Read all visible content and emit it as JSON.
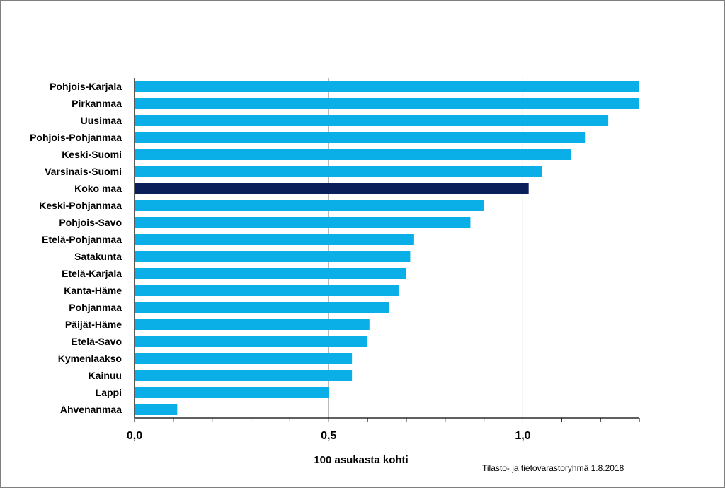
{
  "chart_data": {
    "type": "bar",
    "orientation": "horizontal",
    "title": "",
    "xlabel": "100 asukasta kohti",
    "ylabel": "",
    "xlim": [
      0,
      1.3
    ],
    "x_ticks": [
      {
        "value": 0.0,
        "label": "0,0"
      },
      {
        "value": 0.5,
        "label": "0,5"
      },
      {
        "value": 1.0,
        "label": "1,0"
      }
    ],
    "minor_tick_step": 0.1,
    "gridlines": [
      0.5,
      1.0
    ],
    "colors": {
      "bar": "#0AAFE8",
      "highlight": "#0A1E5A",
      "grid": "#000000"
    },
    "highlight_category": "Koko maa",
    "categories": [
      "Pohjois-Karjala",
      "Pirkanmaa",
      "Uusimaa",
      "Pohjois-Pohjanmaa",
      "Keski-Suomi",
      "Varsinais-Suomi",
      "Koko maa",
      "Keski-Pohjanmaa",
      "Pohjois-Savo",
      "Etelä-Pohjanmaa",
      "Satakunta",
      "Etelä-Karjala",
      "Kanta-Häme",
      "Pohjanmaa",
      "Päijät-Häme",
      "Etelä-Savo",
      "Kymenlaakso",
      "Kainuu",
      "Lappi",
      "Ahvenanmaa"
    ],
    "values": [
      1.3,
      1.3,
      1.22,
      1.16,
      1.125,
      1.05,
      1.015,
      0.9,
      0.865,
      0.72,
      0.71,
      0.7,
      0.68,
      0.655,
      0.605,
      0.6,
      0.56,
      0.56,
      0.5,
      0.11
    ]
  },
  "source_note": "Tilasto- ja tietovarastoryhmä 1.8.2018"
}
